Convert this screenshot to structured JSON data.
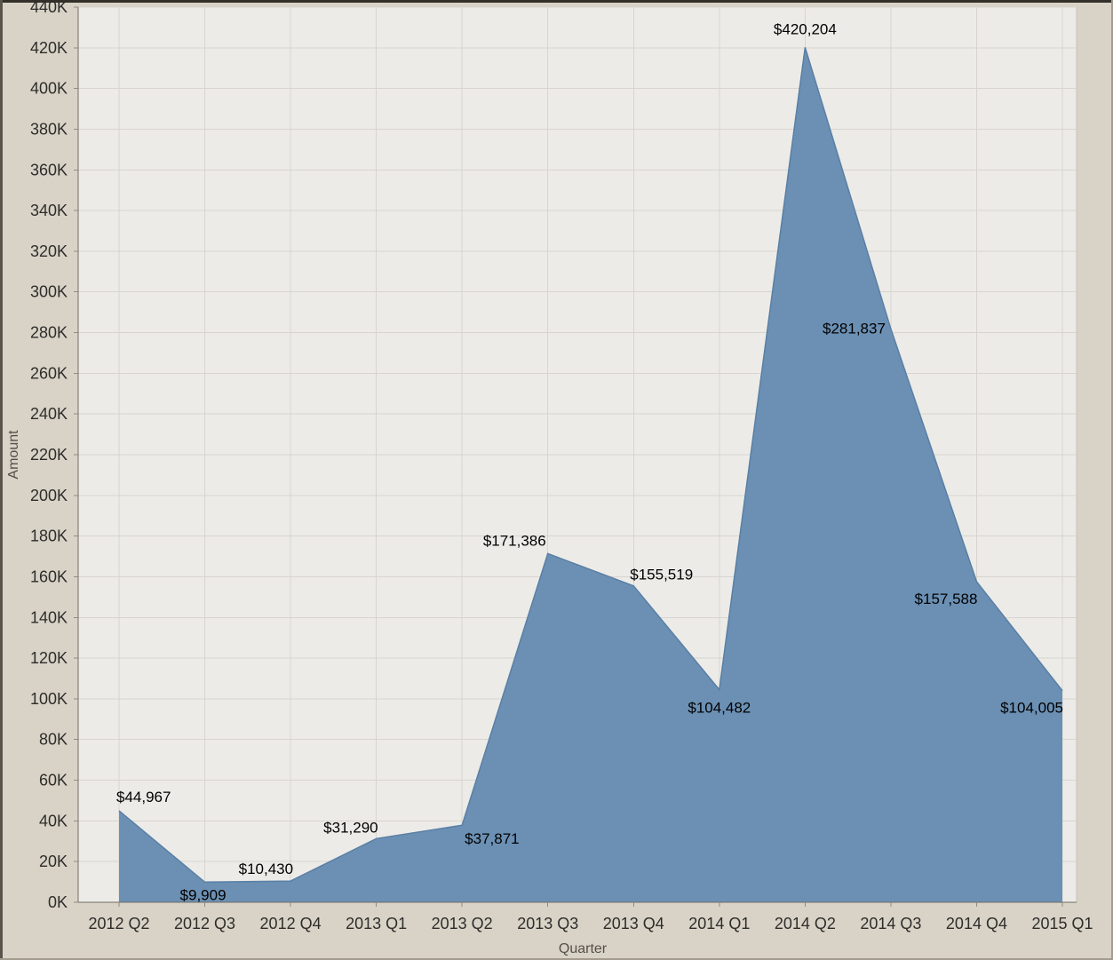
{
  "chart_data": {
    "type": "area",
    "title": "",
    "xlabel": "Quarter",
    "ylabel": "Amount",
    "categories": [
      "2012 Q2",
      "2012 Q3",
      "2012 Q4",
      "2013 Q1",
      "2013 Q2",
      "2013 Q3",
      "2013 Q4",
      "2014 Q1",
      "2014 Q2",
      "2014 Q3",
      "2014 Q4",
      "2015 Q1"
    ],
    "values": [
      44967,
      9909,
      10430,
      31290,
      37871,
      171386,
      155519,
      104482,
      420204,
      281837,
      157588,
      104005
    ],
    "point_labels": [
      "$44,967",
      "$9,909",
      "$10,430",
      "$31,290",
      "$37,871",
      "$171,386",
      "$155,519",
      "$104,482",
      "$420,204",
      "$281,837",
      "$157,588",
      "$104,005"
    ],
    "ylim": [
      0,
      440000
    ],
    "ytick_interval": 20000,
    "ytick_labels": [
      "0K",
      "20K",
      "40K",
      "60K",
      "80K",
      "100K",
      "120K",
      "140K",
      "160K",
      "180K",
      "200K",
      "220K",
      "240K",
      "260K",
      "280K",
      "300K",
      "320K",
      "340K",
      "360K",
      "380K",
      "400K",
      "420K",
      "440K"
    ],
    "grid": true,
    "legend": "none",
    "colors": {
      "area_fill": "#6b90b4",
      "area_stroke": "#597fa5",
      "plot_bg": "#edebe7",
      "outer_bg": "#d9d3c7",
      "grid": "#d8d5cf",
      "plot_border": "#c6c1b8",
      "axis_line": "#706c64",
      "tick_mark": "#8f8b82",
      "tick_text": "#2e2d2b",
      "label_text": "#000000",
      "axis_title_text": "#53504a"
    }
  }
}
